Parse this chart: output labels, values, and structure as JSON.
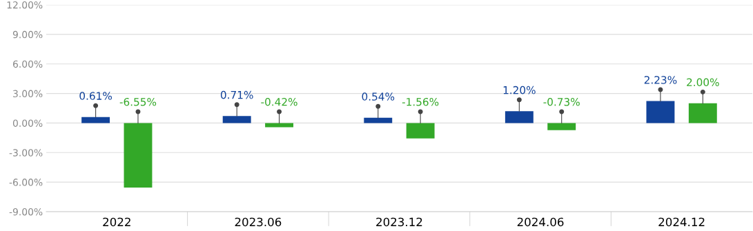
{
  "chart_data": {
    "type": "bar",
    "categories": [
      "2022",
      "2023.06",
      "2023.12",
      "2024.06",
      "2024.12"
    ],
    "series": [
      {
        "color": "#12439a",
        "values": [
          0.61,
          0.71,
          0.54,
          1.2,
          2.23
        ],
        "value_labels": [
          "0.61%",
          "0.71%",
          "0.54%",
          "1.20%",
          "2.23%"
        ]
      },
      {
        "color": "#33a828",
        "values": [
          -6.55,
          -0.42,
          -1.56,
          -0.73,
          2.0
        ],
        "value_labels": [
          "-6.55%",
          "-0.42%",
          "-1.56%",
          "-0.73%",
          "2.00%"
        ]
      }
    ],
    "ylim": [
      -9,
      12
    ],
    "yticks": [
      {
        "value": -9,
        "label": "-9.00%"
      },
      {
        "value": -6,
        "label": "-6.00%"
      },
      {
        "value": -3,
        "label": "-3.00%"
      },
      {
        "value": 0,
        "label": "0.00%"
      },
      {
        "value": 3,
        "label": "3.00%"
      },
      {
        "value": 6,
        "label": "6.00%"
      },
      {
        "value": 9,
        "label": "9.00%"
      },
      {
        "value": 12,
        "label": "12.00%"
      }
    ],
    "grid": "y"
  }
}
